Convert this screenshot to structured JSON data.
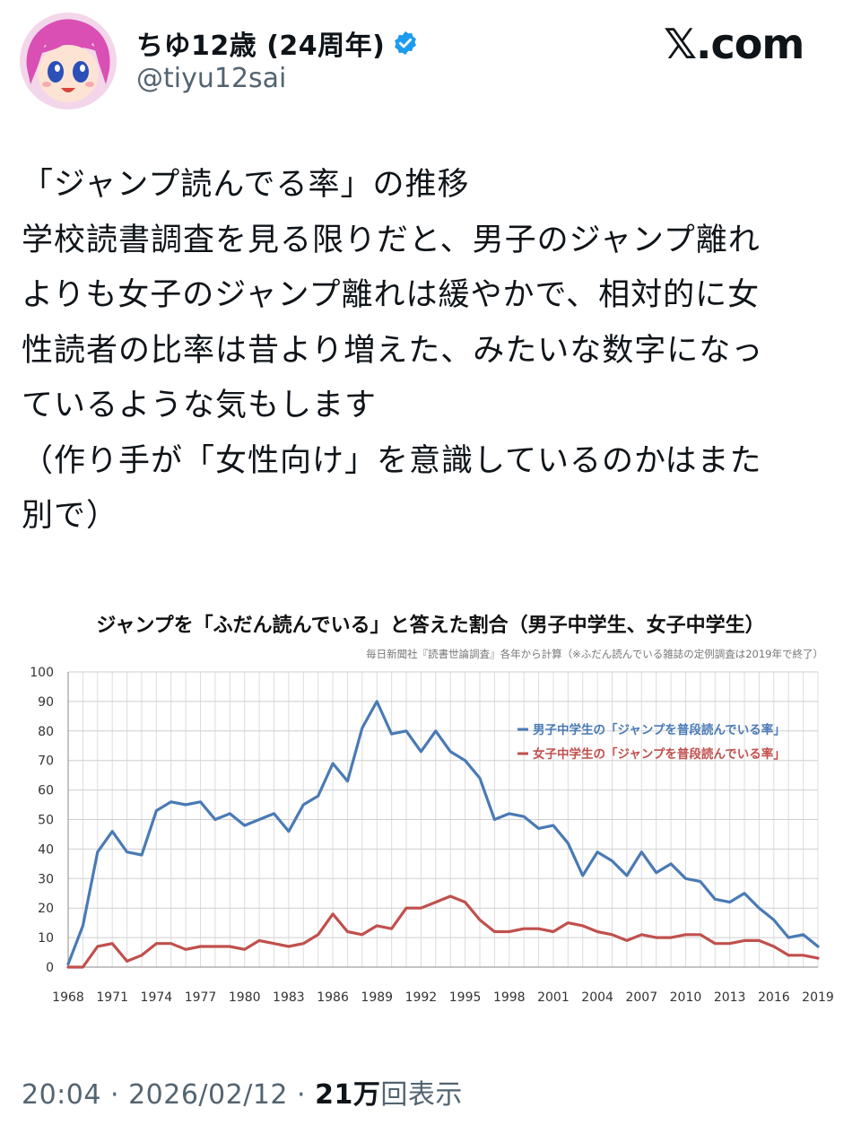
{
  "author": {
    "display_name": "ちゆ12歳 (24周年)",
    "handle": "@tiyu12sai",
    "avatar_icon": "anime-girl-avatar",
    "verified_icon": "verified-badge-icon",
    "verified_color": "#1d9bf0"
  },
  "site": {
    "logo_text": "𝕏.com"
  },
  "post": {
    "lines": [
      "「ジャンプ読んでる率」の推移",
      "学校読書調査を見る限りだと、男子のジャンプ離れ",
      "よりも女子のジャンプ離れは緩やかで、相対的に女",
      "性読者の比率は昔より増えた、みたいな数字になっ",
      "ているような気もします",
      "（作り手が「女性向け」を意識しているのかはまた",
      "別で）"
    ]
  },
  "footer": {
    "time": "20:04",
    "sep1": " · ",
    "date": "2026/02/12",
    "sep2": " · ",
    "views_count": "21万",
    "views_label": "回表示"
  },
  "chart_data": {
    "type": "line",
    "title": "ジャンプを「ふだん読んでいる」と答えた割合（男子中学生、女子中学生）",
    "subtitle": "毎日新聞社『読書世論調査』各年から計算（※ふだん読んでいる雑誌の定例調査は2019年で終了）",
    "xlabel": "",
    "ylabel": "",
    "ylim": [
      0,
      100
    ],
    "yticks": [
      "0",
      "10",
      "20",
      "30",
      "40",
      "50",
      "60",
      "70",
      "80",
      "90",
      "100"
    ],
    "xticks": [
      "1968",
      "1971",
      "1974",
      "1977",
      "1980",
      "1983",
      "1986",
      "1989",
      "1992",
      "1995",
      "1998",
      "2001",
      "2004",
      "2007",
      "2010",
      "2013",
      "2016",
      "2019"
    ],
    "grid": true,
    "legend_position": "top-right",
    "x": [
      1968,
      1969,
      1970,
      1971,
      1972,
      1973,
      1974,
      1975,
      1976,
      1977,
      1978,
      1979,
      1980,
      1981,
      1982,
      1983,
      1984,
      1985,
      1986,
      1987,
      1988,
      1989,
      1990,
      1991,
      1992,
      1993,
      1994,
      1995,
      1996,
      1997,
      1998,
      1999,
      2000,
      2001,
      2002,
      2003,
      2004,
      2005,
      2006,
      2007,
      2008,
      2009,
      2010,
      2011,
      2012,
      2013,
      2014,
      2015,
      2016,
      2017,
      2018,
      2019
    ],
    "series": [
      {
        "name": "男子中学生の「ジャンプを普段読んでいる率」",
        "color": "#4a7ab5",
        "values": [
          1,
          14,
          39,
          46,
          39,
          38,
          53,
          56,
          55,
          56,
          50,
          52,
          48,
          50,
          52,
          46,
          55,
          58,
          69,
          63,
          81,
          90,
          79,
          80,
          73,
          80,
          73,
          70,
          64,
          50,
          52,
          51,
          47,
          48,
          42,
          31,
          39,
          36,
          31,
          39,
          32,
          35,
          30,
          29,
          23,
          22,
          25,
          20,
          16,
          10,
          11,
          7
        ]
      },
      {
        "name": "女子中学生の「ジャンプを普段読んでいる率」",
        "color": "#c0504d",
        "values": [
          0,
          0,
          7,
          8,
          2,
          4,
          8,
          8,
          6,
          7,
          7,
          7,
          6,
          9,
          8,
          7,
          8,
          11,
          18,
          12,
          11,
          14,
          13,
          20,
          20,
          22,
          24,
          22,
          16,
          12,
          12,
          13,
          13,
          12,
          15,
          14,
          12,
          11,
          9,
          11,
          10,
          10,
          11,
          11,
          8,
          8,
          9,
          9,
          7,
          4,
          4,
          3
        ]
      }
    ]
  }
}
